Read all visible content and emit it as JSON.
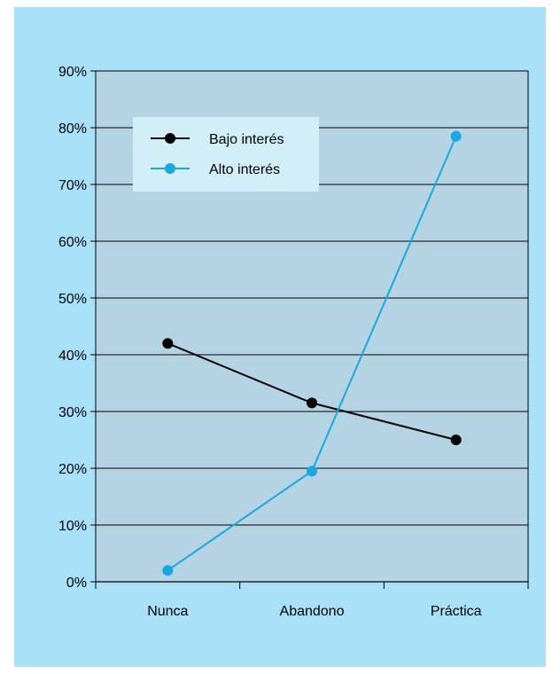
{
  "chart_data": {
    "type": "line",
    "categories": [
      "Nunca",
      "Abandono",
      "Práctica"
    ],
    "series": [
      {
        "name": "Bajo interés",
        "values": [
          42,
          31.5,
          25
        ],
        "color": "#000000"
      },
      {
        "name": "Alto interés",
        "values": [
          2,
          19.5,
          78.5
        ],
        "color": "#1aa7e0"
      }
    ],
    "yticks": [
      "0%",
      "10%",
      "20%",
      "30%",
      "40%",
      "50%",
      "60%",
      "70%",
      "80%",
      "90%"
    ],
    "ylim": [
      0,
      90
    ],
    "grid": true,
    "legend": "top-left",
    "colors": {
      "background": "#a8e0f8",
      "plot_area": "#b4d4e4",
      "legend_box": "#d2eef8"
    }
  }
}
